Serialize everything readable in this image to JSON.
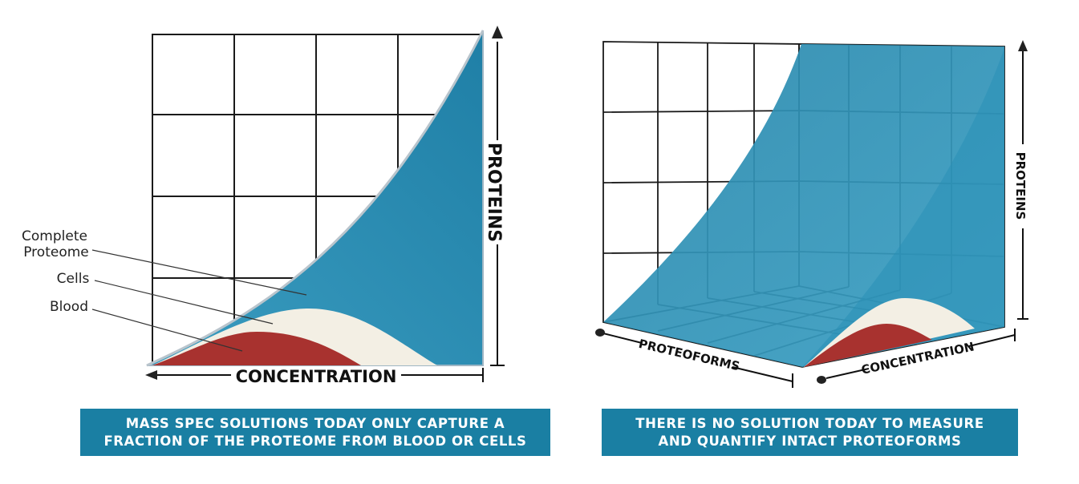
{
  "colors": {
    "proteome_blue": "#2f93b5",
    "cells_cream": "#f3efe4",
    "blood_red": "#a8322f",
    "caption_bg": "#1a7fa3",
    "grid": "#1a1a1a"
  },
  "left_panel": {
    "y_axis_label": "PROTEINS",
    "x_axis_label": "CONCENTRATION",
    "callouts": {
      "complete_line1": "Complete",
      "complete_line2": "Proteome",
      "cells": "Cells",
      "blood": "Blood"
    },
    "caption": {
      "line1": "MASS SPEC SOLUTIONS TODAY ONLY CAPTURE A",
      "line2": "FRACTION OF THE PROTEOME FROM BLOOD OR CELLS"
    }
  },
  "right_panel": {
    "y_axis_label": "PROTEINS",
    "depth_axis_label": "PROTEOFORMS",
    "x_axis_label": "CONCENTRATION",
    "caption": {
      "line1": "THERE IS NO SOLUTION TODAY TO MEASURE",
      "line2": "AND QUANTIFY INTACT PROTEOFORMS"
    }
  }
}
